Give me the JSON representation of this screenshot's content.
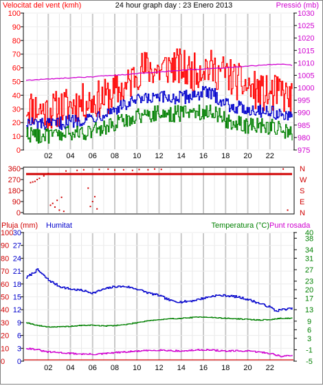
{
  "header": {
    "wind_title": "Velocitat del vent (kmh)",
    "center_title": "24 hour graph day : 23 Enero 2013",
    "pressure_title": "Pressió (mb)"
  },
  "colors": {
    "frame": "#000000",
    "grid": "#c8c8c8",
    "wind_gust": "#ff0000",
    "wind_avg": "#0000cc",
    "wind_min": "#008000",
    "pressure": "#d000d0",
    "direction": "#d00000",
    "humidity": "#0000cc",
    "temperature": "#008000",
    "dewpoint": "#d000d0",
    "rain": "#d00000"
  },
  "chart_data": [
    {
      "type": "line",
      "title": "",
      "xlabel": "",
      "x_ticks": [
        "02",
        "04",
        "06",
        "08",
        "10",
        "12",
        "14",
        "16",
        "18",
        "20",
        "22"
      ],
      "ylabel_left": "Velocitat del vent (kmh)",
      "ylabel_right": "Pressió (mb)",
      "ylim_left": [
        0,
        100
      ],
      "yticks_left": [
        "0",
        "10",
        "20",
        "30",
        "40",
        "50",
        "60",
        "70",
        "80",
        "90",
        "100"
      ],
      "ylim_right": [
        975,
        1030
      ],
      "yticks_right": [
        "975",
        "980",
        "985",
        "990",
        "995",
        "1000",
        "1005",
        "1010",
        "1015",
        "1020",
        "1025",
        "1030"
      ],
      "x_hours": [
        0,
        2,
        4,
        6,
        7,
        8,
        9,
        10,
        11,
        12,
        13,
        14,
        15,
        16,
        17,
        18,
        19,
        20,
        21,
        22,
        23,
        24
      ],
      "series": [
        {
          "name": "",
          "axis": "left",
          "values": [
            32,
            28,
            33,
            36,
            38,
            42,
            45,
            58,
            60,
            58,
            62,
            60,
            56,
            62,
            58,
            56,
            50,
            46,
            42,
            40,
            42,
            36
          ]
        },
        {
          "name": "",
          "axis": "left",
          "values": [
            20,
            18,
            21,
            24,
            27,
            30,
            33,
            36,
            37,
            38,
            38,
            38,
            40,
            42,
            40,
            34,
            31,
            30,
            29,
            28,
            26,
            22
          ]
        },
        {
          "name": "",
          "axis": "left",
          "values": [
            12,
            10,
            12,
            14,
            16,
            19,
            22,
            25,
            26,
            27,
            26,
            27,
            28,
            28,
            28,
            22,
            19,
            18,
            18,
            17,
            15,
            12
          ]
        },
        {
          "name": "",
          "axis": "right",
          "values": [
            1003,
            1003.5,
            1004,
            1004.4,
            1004.8,
            1005,
            1005.3,
            1005.7,
            1006,
            1006.3,
            1006.7,
            1007,
            1007.3,
            1007.5,
            1007.8,
            1008.1,
            1008.4,
            1008.7,
            1009,
            1009.3,
            1009.5,
            1009
          ]
        }
      ]
    },
    {
      "type": "scatter",
      "title": "",
      "ylabel_left": "",
      "ylim": [
        0,
        360
      ],
      "yticks_left": [
        "0",
        "90",
        "180",
        "270",
        "360"
      ],
      "yticks_right": [
        "N",
        "E",
        "S",
        "W",
        "N"
      ],
      "x_ticks": [],
      "series": [
        {
          "name": "",
          "band_degrees": 315,
          "band_hours": [
            0,
            24
          ]
        },
        {
          "name": "",
          "points": [
            [
              0.4,
              245
            ],
            [
              0.6,
              250
            ],
            [
              0.8,
              255
            ],
            [
              1.0,
              270
            ],
            [
              1.2,
              280
            ],
            [
              1.6,
              300
            ],
            [
              2.0,
              320
            ],
            [
              2.2,
              60
            ],
            [
              2.4,
              75
            ],
            [
              2.6,
              45
            ],
            [
              2.8,
              100
            ],
            [
              3.0,
              20
            ],
            [
              3.2,
              125
            ],
            [
              3.4,
              10
            ],
            [
              5.8,
              50
            ],
            [
              6.0,
              90
            ],
            [
              6.2,
              130
            ],
            [
              6.4,
              30
            ],
            [
              5.6,
              200
            ],
            [
              3.6,
              340
            ],
            [
              4.6,
              345
            ],
            [
              5.2,
              350
            ],
            [
              6.6,
              352
            ],
            [
              7.4,
              355
            ],
            [
              8.0,
              348
            ],
            [
              8.8,
              350
            ],
            [
              9.6,
              345
            ],
            [
              10.2,
              352
            ],
            [
              11.0,
              350
            ],
            [
              11.6,
              356
            ],
            [
              12.2,
              353
            ],
            [
              23.2,
              356
            ],
            [
              23.6,
              20
            ]
          ]
        }
      ]
    },
    {
      "type": "line",
      "title": "",
      "x_ticks": [
        "02",
        "04",
        "06",
        "08",
        "10",
        "12",
        "14",
        "16",
        "18",
        "20",
        "22"
      ],
      "ylabel_left": "Pluja (mm)",
      "ylabel_left2": "Humitat",
      "ylabel_right": "Temperatura (°C)",
      "ylabel_right2": "Punt rosada",
      "ylim_left": [
        0,
        100
      ],
      "yticks_left_rain": [
        "0",
        "10",
        "20",
        "30",
        "40",
        "50",
        "60",
        "70",
        "80",
        "90",
        "100"
      ],
      "yticks_left_hum": [
        "0",
        "3",
        "6",
        "9",
        "12",
        "15",
        "18",
        "21",
        "24",
        "27",
        "30"
      ],
      "ylim_right": [
        -5,
        40
      ],
      "yticks_right": [
        "-5",
        "-1",
        "3",
        "6",
        "9",
        "13",
        "17",
        "20",
        "23",
        "27",
        "31",
        "34",
        "38",
        "40"
      ],
      "x_hours": [
        0,
        0.5,
        1,
        1.5,
        2,
        3,
        4,
        5,
        6,
        7,
        8,
        9,
        10,
        11,
        12,
        13,
        14,
        15,
        16,
        17,
        18,
        19,
        20,
        21,
        22,
        22.5,
        23,
        24
      ],
      "series": [
        {
          "name": "",
          "axis": "left",
          "values": [
            65,
            68,
            71,
            67,
            63,
            58,
            56,
            55,
            53,
            56,
            58,
            58,
            56,
            53,
            51,
            47,
            46,
            47,
            49,
            51,
            51,
            50,
            48,
            45,
            42,
            39,
            40,
            41
          ]
        },
        {
          "name": "",
          "axis": "right",
          "values": [
            8.5,
            8,
            7.5,
            7.2,
            7,
            7,
            7.2,
            7.5,
            7.6,
            7.3,
            7.5,
            7.8,
            8.5,
            9.2,
            9.5,
            9.8,
            10,
            10.3,
            10.5,
            10.2,
            10,
            9.8,
            9.6,
            9.4,
            9.5,
            9.8,
            10,
            10
          ]
        },
        {
          "name": "",
          "axis": "right",
          "values": [
            -0.5,
            -0.7,
            -1,
            -1.5,
            -1.8,
            -2,
            -2.3,
            -2.5,
            -2.6,
            -2.4,
            -2,
            -1.8,
            -1.5,
            -1.3,
            -1.1,
            -1.3,
            -1.5,
            -1.2,
            -1.0,
            -1.2,
            -1.5,
            -1.4,
            -1.5,
            -1.8,
            -2.3,
            -2.8,
            -3.3,
            -3.0
          ]
        },
        {
          "name": "",
          "axis": "left_rain",
          "values": [
            1,
            1,
            1,
            1,
            1,
            1,
            1,
            1,
            1,
            1,
            1,
            1,
            1,
            1,
            1,
            1,
            1,
            1,
            1,
            1,
            1,
            1,
            1,
            1,
            1,
            1,
            1,
            1
          ]
        }
      ]
    }
  ]
}
